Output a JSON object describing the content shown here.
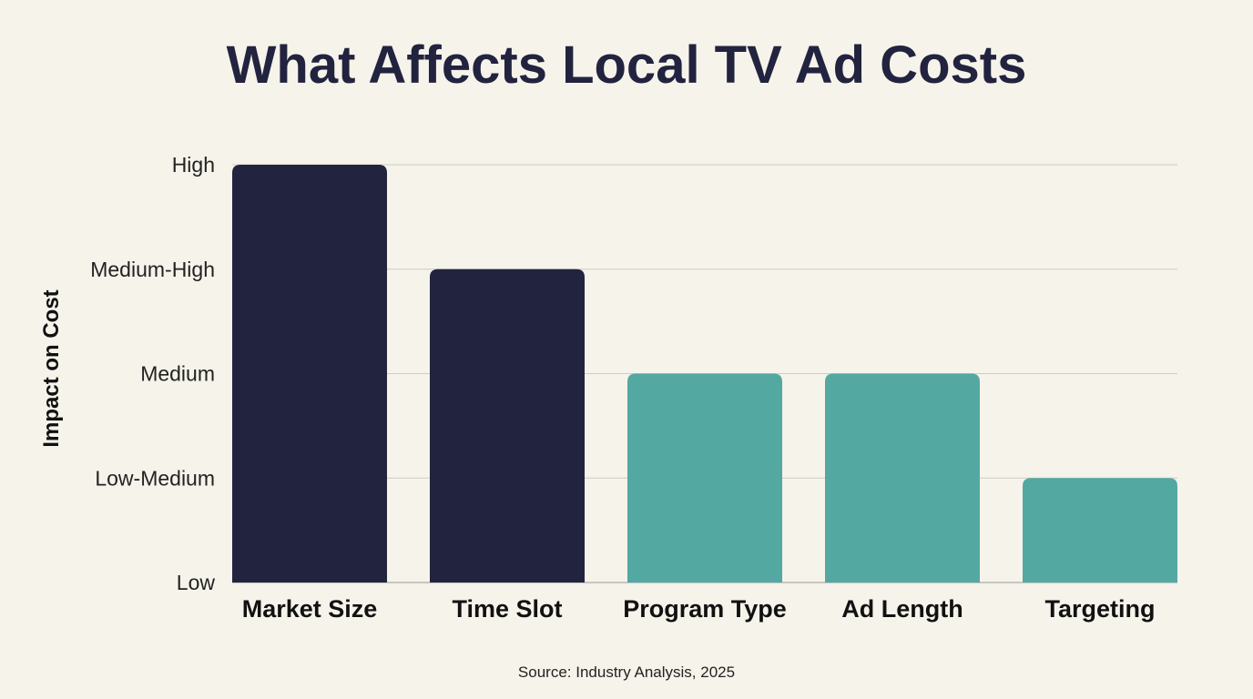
{
  "chart_data": {
    "type": "bar",
    "title": "What Affects Local TV Ad Costs",
    "xlabel": "",
    "ylabel": "Impact on Cost",
    "categories": [
      "Market Size",
      "Time Slot",
      "Program Type",
      "Ad Length",
      "Targeting"
    ],
    "values": [
      4,
      3,
      2,
      2,
      1
    ],
    "y_tick_labels": [
      "Low",
      "Low-Medium",
      "Medium",
      "Medium-High",
      "High"
    ],
    "ylim": [
      0,
      4
    ],
    "grid": true,
    "bar_colors": [
      "#22233f",
      "#22233f",
      "#53a9a2",
      "#53a9a2",
      "#53a9a2"
    ],
    "source": "Source: Industry Analysis, 2025"
  }
}
